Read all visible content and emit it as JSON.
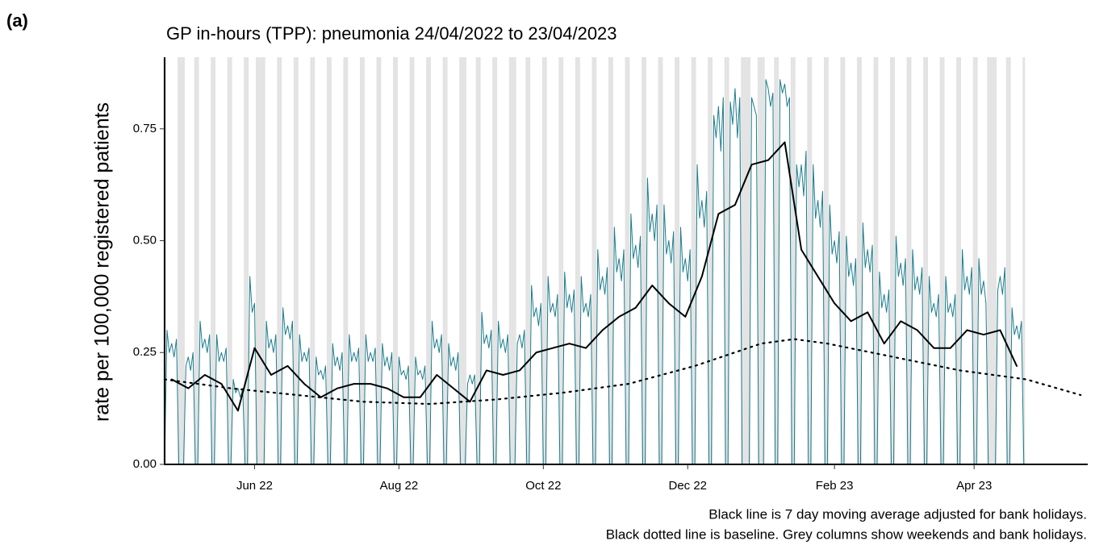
{
  "chart_data": {
    "type": "line",
    "panel_label": "(a)",
    "title": "GP in-hours (TPP): pneumonia 24/04/2022 to 23/04/2023",
    "y_label": "rate per 100,000 registered patients",
    "notes": [
      "Black line is 7 day moving average adjusted for bank holidays.",
      "Black dotted line is baseline. Grey columns show weekends and bank holidays."
    ],
    "xlim": [
      0,
      390
    ],
    "xticks": [
      {
        "value": 38,
        "label": "Jun 22"
      },
      {
        "value": 99,
        "label": "Aug 22"
      },
      {
        "value": 160,
        "label": "Oct 22"
      },
      {
        "value": 221,
        "label": "Dec 22"
      },
      {
        "value": 283,
        "label": "Feb 23"
      },
      {
        "value": 342,
        "label": "Apr 23"
      }
    ],
    "ylim": [
      0,
      0.91
    ],
    "yticks": [
      {
        "value": 0,
        "label": "0.00"
      },
      {
        "value": 0.25,
        "label": "0.25"
      },
      {
        "value": 0.5,
        "label": "0.50"
      },
      {
        "value": 0.75,
        "label": "0.75"
      }
    ],
    "column_color": "#e3e3e3",
    "series": [
      {
        "color": "#1b7c8c",
        "style": "solid",
        "x": [
          0,
          1,
          2,
          3,
          4,
          5,
          6,
          7,
          8,
          9,
          10,
          11,
          12,
          13,
          14,
          15,
          16,
          17,
          18,
          19,
          20,
          21,
          22,
          23,
          24,
          25,
          26,
          27,
          28,
          29,
          30,
          31,
          32,
          33,
          34,
          35,
          36,
          37,
          38,
          39,
          40,
          41,
          42,
          43,
          44,
          45,
          46,
          47,
          48,
          49,
          50,
          51,
          52,
          53,
          54,
          55,
          56,
          57,
          58,
          59,
          60,
          61,
          62,
          63,
          64,
          65,
          66,
          67,
          68,
          69,
          70,
          71,
          72,
          73,
          74,
          75,
          76,
          77,
          78,
          79,
          80,
          81,
          82,
          83,
          84,
          85,
          86,
          87,
          88,
          89,
          90,
          91,
          92,
          93,
          94,
          95,
          96,
          97,
          98,
          99,
          100,
          101,
          102,
          103,
          104,
          105,
          106,
          107,
          108,
          109,
          110,
          111,
          112,
          113,
          114,
          115,
          116,
          117,
          118,
          119,
          120,
          121,
          122,
          123,
          124,
          125,
          126,
          127,
          128,
          129,
          130,
          131,
          132,
          133,
          134,
          135,
          136,
          137,
          138,
          139,
          140,
          141,
          142,
          143,
          144,
          145,
          146,
          147,
          148,
          149,
          150,
          151,
          152,
          153,
          154,
          155,
          156,
          157,
          158,
          159,
          160,
          161,
          162,
          163,
          164,
          165,
          166,
          167,
          168,
          169,
          170,
          171,
          172,
          173,
          174,
          175,
          176,
          177,
          178,
          179,
          180,
          181,
          182,
          183,
          184,
          185,
          186,
          187,
          188,
          189,
          190,
          191,
          192,
          193,
          194,
          195,
          196,
          197,
          198,
          199,
          200,
          201,
          202,
          203,
          204,
          205,
          206,
          207,
          208,
          209,
          210,
          211,
          212,
          213,
          214,
          215,
          216,
          217,
          218,
          219,
          220,
          221,
          222,
          223,
          224,
          225,
          226,
          227,
          228,
          229,
          230,
          231,
          232,
          233,
          234,
          235,
          236,
          237,
          238,
          239,
          240,
          241,
          242,
          243,
          244,
          245,
          246,
          247,
          248,
          249,
          250,
          251,
          252,
          253,
          254,
          255,
          256,
          257,
          258,
          259,
          260,
          261,
          262,
          263,
          264,
          265,
          266,
          267,
          268,
          269,
          270,
          271,
          272,
          273,
          274,
          275,
          276,
          277,
          278,
          279,
          280,
          281,
          282,
          283,
          284,
          285,
          286,
          287,
          288,
          289,
          290,
          291,
          292,
          293,
          294,
          295,
          296,
          297,
          298,
          299,
          300,
          301,
          302,
          303,
          304,
          305,
          306,
          307,
          308,
          309,
          310,
          311,
          312,
          313,
          314,
          315,
          316,
          317,
          318,
          319,
          320,
          321,
          322,
          323,
          324,
          325,
          326,
          327,
          328,
          329,
          330,
          331,
          332,
          333,
          334,
          335,
          336,
          337,
          338,
          339,
          340,
          341,
          342,
          343,
          344,
          345,
          346,
          347,
          348,
          349,
          350,
          351,
          352,
          353,
          354,
          355,
          356,
          357,
          358,
          359,
          360,
          361,
          362,
          363
        ],
        "values": [
          0,
          0.3,
          0.25,
          0.27,
          0.24,
          0.28,
          0,
          0,
          0,
          0.22,
          0.24,
          0.21,
          0.25,
          0,
          0,
          0.32,
          0.26,
          0.28,
          0.25,
          0.29,
          0,
          0,
          0.29,
          0.23,
          0.25,
          0.23,
          0.26,
          0,
          0,
          0.19,
          0.16,
          0.17,
          0.15,
          0.17,
          0,
          0,
          0.42,
          0.34,
          0.36,
          0,
          0,
          0,
          0,
          0.32,
          0.26,
          0.28,
          0.25,
          0.29,
          0,
          0,
          0.35,
          0.29,
          0.31,
          0.28,
          0.32,
          0,
          0,
          0.29,
          0.23,
          0.25,
          0.23,
          0.26,
          0,
          0,
          0.24,
          0.2,
          0.21,
          0.19,
          0.22,
          0,
          0,
          0.27,
          0.22,
          0.24,
          0.21,
          0.25,
          0,
          0,
          0.29,
          0.23,
          0.25,
          0.23,
          0.26,
          0,
          0,
          0.29,
          0.23,
          0.25,
          0.23,
          0.26,
          0,
          0,
          0.27,
          0.22,
          0.24,
          0.21,
          0.25,
          0,
          0,
          0.24,
          0.2,
          0.21,
          0.19,
          0.22,
          0,
          0,
          0.24,
          0.2,
          0.21,
          0.19,
          0.22,
          0,
          0,
          0.32,
          0.26,
          0.28,
          0.25,
          0.29,
          0,
          0,
          0.27,
          0.22,
          0.24,
          0.21,
          0.25,
          0,
          0,
          0,
          0.18,
          0.2,
          0.18,
          0.2,
          0,
          0,
          0.34,
          0.27,
          0.29,
          0.26,
          0.3,
          0,
          0,
          0.32,
          0.26,
          0.28,
          0.25,
          0.29,
          0,
          0,
          0,
          0.27,
          0.29,
          0.26,
          0.3,
          0,
          0,
          0.4,
          0.33,
          0.35,
          0.31,
          0.36,
          0,
          0,
          0.42,
          0.34,
          0.36,
          0.33,
          0.38,
          0,
          0,
          0.43,
          0.35,
          0.38,
          0.34,
          0.39,
          0,
          0,
          0.42,
          0.34,
          0.36,
          0.33,
          0.38,
          0,
          0,
          0.48,
          0.39,
          0.42,
          0.38,
          0.44,
          0,
          0,
          0.53,
          0.43,
          0.46,
          0.41,
          0.48,
          0,
          0,
          0.56,
          0.46,
          0.49,
          0.44,
          0.51,
          0,
          0,
          0.64,
          0.52,
          0.56,
          0.5,
          0.58,
          0,
          0,
          0.58,
          0.47,
          0.5,
          0.45,
          0.52,
          0,
          0,
          0.53,
          0.43,
          0.46,
          0.41,
          0.48,
          0,
          0,
          0.67,
          0.55,
          0.59,
          0.53,
          0.61,
          0,
          0,
          0.78,
          0.73,
          0.8,
          0.7,
          0.82,
          0,
          0,
          0.81,
          0.76,
          0.84,
          0.73,
          0.82,
          0,
          0,
          0,
          0,
          0.82,
          0.8,
          0.78,
          0,
          0,
          0,
          0.86,
          0.84,
          0.8,
          0.83,
          0,
          0,
          0.86,
          0.83,
          0.85,
          0.8,
          0.82,
          0,
          0,
          0.67,
          0.62,
          0.67,
          0.6,
          0.7,
          0,
          0,
          0.67,
          0.55,
          0.59,
          0.53,
          0.61,
          0,
          0,
          0.58,
          0.47,
          0.5,
          0.45,
          0.52,
          0,
          0,
          0.51,
          0.42,
          0.45,
          0.4,
          0.46,
          0,
          0,
          0.54,
          0.44,
          0.48,
          0.43,
          0.49,
          0,
          0,
          0.43,
          0.35,
          0.38,
          0.34,
          0.39,
          0,
          0,
          0.51,
          0.42,
          0.45,
          0.4,
          0.46,
          0,
          0,
          0.48,
          0.39,
          0.42,
          0.38,
          0.44,
          0,
          0,
          0.42,
          0.34,
          0.36,
          0.33,
          0.38,
          0,
          0,
          0.42,
          0.34,
          0.36,
          0.33,
          0.38,
          0,
          0,
          0.48,
          0.39,
          0.42,
          0.38,
          0.44,
          0,
          0,
          0.46,
          0.38,
          0.41,
          0.36,
          0,
          0,
          0,
          0,
          0.39,
          0.42,
          0.38,
          0.44,
          0,
          0,
          0.35,
          0.29,
          0.31,
          0.28,
          0.32,
          0
        ]
      },
      {
        "color": "#000000",
        "style": "solid",
        "x": [
          3,
          10,
          17,
          24,
          31,
          38,
          45,
          52,
          59,
          66,
          73,
          80,
          87,
          94,
          101,
          108,
          115,
          122,
          129,
          136,
          143,
          150,
          157,
          164,
          171,
          178,
          185,
          192,
          199,
          206,
          213,
          220,
          227,
          234,
          241,
          248,
          255,
          262,
          269,
          276,
          283,
          290,
          297,
          304,
          311,
          318,
          325,
          332,
          339,
          346,
          353,
          360
        ],
        "values": [
          0.19,
          0.17,
          0.2,
          0.18,
          0.12,
          0.26,
          0.2,
          0.22,
          0.18,
          0.15,
          0.17,
          0.18,
          0.18,
          0.17,
          0.15,
          0.15,
          0.2,
          0.17,
          0.14,
          0.21,
          0.2,
          0.21,
          0.25,
          0.26,
          0.27,
          0.26,
          0.3,
          0.33,
          0.35,
          0.4,
          0.36,
          0.33,
          0.42,
          0.56,
          0.58,
          0.67,
          0.68,
          0.72,
          0.48,
          0.42,
          0.36,
          0.32,
          0.34,
          0.27,
          0.32,
          0.3,
          0.26,
          0.26,
          0.3,
          0.29,
          0.3,
          0.22
        ]
      },
      {
        "color": "#000000",
        "style": "dotted",
        "x": [
          0,
          28,
          56,
          84,
          112,
          140,
          168,
          196,
          224,
          252,
          266,
          280,
          308,
          336,
          364,
          387
        ],
        "values": [
          0.19,
          0.17,
          0.155,
          0.14,
          0.135,
          0.145,
          0.16,
          0.18,
          0.22,
          0.27,
          0.28,
          0.27,
          0.24,
          0.21,
          0.19,
          0.155
        ]
      }
    ]
  }
}
